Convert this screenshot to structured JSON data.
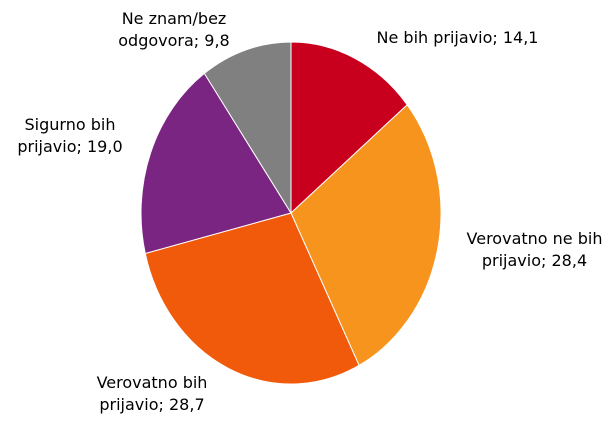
{
  "chart_data": {
    "type": "pie",
    "categories": [
      "Ne bih prijavio",
      "Verovatno ne bih prijavio",
      "Verovatno bih prijavio",
      "Sigurno bih prijavio",
      "Ne znam/bez odgovora"
    ],
    "values": [
      14.1,
      28.4,
      28.7,
      19.0,
      9.8
    ],
    "value_labels": [
      "14,1",
      "28,4",
      "28,7",
      "19,0",
      "9,8"
    ],
    "label_separator": "; ",
    "colors": [
      "#c8001e",
      "#f7941d",
      "#f05a0a",
      "#7b2582",
      "#808080"
    ]
  }
}
